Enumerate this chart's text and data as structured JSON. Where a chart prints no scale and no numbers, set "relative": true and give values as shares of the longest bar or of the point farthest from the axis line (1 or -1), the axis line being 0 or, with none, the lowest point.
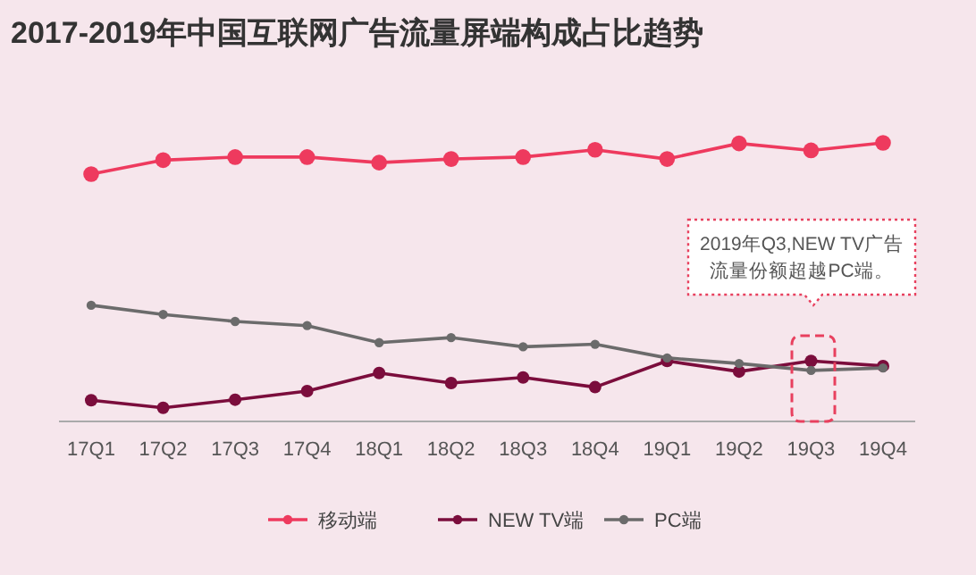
{
  "chart_data": {
    "type": "line",
    "title": "2017-2019年中国互联网广告流量屏端构成占比趋势",
    "relative": true,
    "categories": [
      "17Q1",
      "17Q2",
      "17Q3",
      "17Q4",
      "18Q1",
      "18Q2",
      "18Q3",
      "18Q4",
      "19Q1",
      "19Q2",
      "19Q3",
      "19Q4"
    ],
    "series": [
      {
        "name": "移动端",
        "color": "#ee3a5e",
        "values": [
          0.888,
          0.938,
          0.949,
          0.949,
          0.929,
          0.942,
          0.949,
          0.975,
          0.942,
          0.998,
          0.973,
          1
        ]
      },
      {
        "name": "NEW TV端",
        "color": "#7b0d3c",
        "values": [
          0.076,
          0.049,
          0.078,
          0.109,
          0.174,
          0.138,
          0.158,
          0.123,
          0.217,
          0.179,
          0.217,
          0.199
        ]
      },
      {
        "name": "PC端",
        "color": "#6b6b6b",
        "values": [
          0.417,
          0.384,
          0.359,
          0.344,
          0.283,
          0.301,
          0.268,
          0.277,
          0.228,
          0.208,
          0.183,
          0.192
        ]
      }
    ],
    "annotations": [
      "2019年Q3,NEW TV广告流量份额超越PC端。"
    ],
    "marker": "circle",
    "line_style": "solid",
    "legend": "bottom"
  }
}
